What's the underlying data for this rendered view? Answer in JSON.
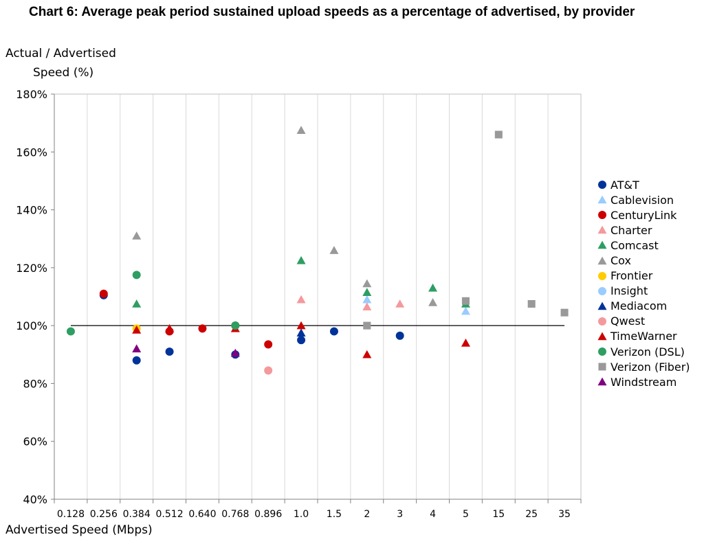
{
  "chart_data": {
    "type": "scatter",
    "title": "Chart 6: Average peak period sustained upload speeds as a percentage of advertised, by provider",
    "ylabel_line1": "Actual / Advertised",
    "ylabel_line2": "Speed (%)",
    "xlabel": "Advertised Speed (Mbps)",
    "x_scale": "categorical",
    "categories": [
      "0.128",
      "0.256",
      "0.384",
      "0.512",
      "0.640",
      "0.768",
      "0.896",
      "1.0",
      "1.5",
      "2",
      "3",
      "4",
      "5",
      "15",
      "25",
      "35"
    ],
    "ylim": [
      40,
      180
    ],
    "yticks": [
      40,
      60,
      80,
      100,
      120,
      140,
      160,
      180
    ],
    "ytick_labels": [
      "40%",
      "60%",
      "80%",
      "100%",
      "120%",
      "140%",
      "160%",
      "180%"
    ],
    "reference_line": 100,
    "grid": "vertical",
    "legend_position": "right",
    "series": [
      {
        "name": "AT&T",
        "marker": "circle",
        "color": "#003399",
        "points": [
          [
            "0.256",
            110.5
          ],
          [
            "0.384",
            88
          ],
          [
            "0.512",
            91
          ],
          [
            "0.768",
            90
          ],
          [
            "1.0",
            95
          ],
          [
            "1.5",
            98
          ],
          [
            "3",
            96.5
          ]
        ]
      },
      {
        "name": "Cablevision",
        "marker": "triangle",
        "color": "#99ccff",
        "points": [
          [
            "2",
            109
          ],
          [
            "5",
            105
          ]
        ]
      },
      {
        "name": "CenturyLink",
        "marker": "circle",
        "color": "#cc0000",
        "points": [
          [
            "0.256",
            111
          ],
          [
            "0.512",
            98
          ],
          [
            "0.640",
            99
          ],
          [
            "0.768",
            100
          ],
          [
            "0.896",
            93.5
          ]
        ]
      },
      {
        "name": "Charter",
        "marker": "triangle",
        "color": "#f4999c",
        "points": [
          [
            "1.0",
            109
          ],
          [
            "2",
            106.5
          ],
          [
            "3",
            107.5
          ]
        ]
      },
      {
        "name": "Comcast",
        "marker": "triangle",
        "color": "#2e9e63",
        "points": [
          [
            "0.384",
            107.5
          ],
          [
            "1.0",
            122.5
          ],
          [
            "2",
            111.5
          ],
          [
            "4",
            113
          ],
          [
            "5",
            107.5
          ]
        ]
      },
      {
        "name": "Cox",
        "marker": "triangle",
        "color": "#999999",
        "points": [
          [
            "0.384",
            131
          ],
          [
            "1.0",
            167.5
          ],
          [
            "1.5",
            126
          ],
          [
            "2",
            114.5
          ],
          [
            "4",
            108
          ]
        ]
      },
      {
        "name": "Frontier",
        "marker": "circle",
        "color": "#ffcc00",
        "points": [
          [
            "0.384",
            99
          ]
        ]
      },
      {
        "name": "Insight",
        "marker": "circle",
        "color": "#99ccff",
        "points": []
      },
      {
        "name": "Mediacom",
        "marker": "triangle",
        "color": "#003399",
        "points": [
          [
            "1.0",
            97.5
          ]
        ]
      },
      {
        "name": "Qwest",
        "marker": "circle",
        "color": "#f4999c",
        "points": [
          [
            "0.896",
            84.5
          ]
        ]
      },
      {
        "name": "TimeWarner",
        "marker": "triangle",
        "color": "#cc0000",
        "points": [
          [
            "0.384",
            98.5
          ],
          [
            "0.512",
            99
          ],
          [
            "0.768",
            99
          ],
          [
            "1.0",
            100
          ],
          [
            "2",
            90
          ],
          [
            "5",
            94
          ]
        ]
      },
      {
        "name": "Verizon (DSL)",
        "marker": "circle",
        "color": "#2e9e63",
        "points": [
          [
            "0.128",
            98
          ],
          [
            "0.384",
            117.5
          ],
          [
            "0.768",
            100
          ]
        ]
      },
      {
        "name": "Verizon (Fiber)",
        "marker": "square",
        "color": "#999999",
        "points": [
          [
            "2",
            100
          ],
          [
            "5",
            108.5
          ],
          [
            "15",
            166
          ],
          [
            "25",
            107.5
          ],
          [
            "35",
            104.5
          ]
        ]
      },
      {
        "name": "Windstream",
        "marker": "triangle",
        "color": "#800080",
        "points": [
          [
            "0.384",
            92
          ],
          [
            "0.768",
            90.5
          ]
        ]
      }
    ]
  }
}
